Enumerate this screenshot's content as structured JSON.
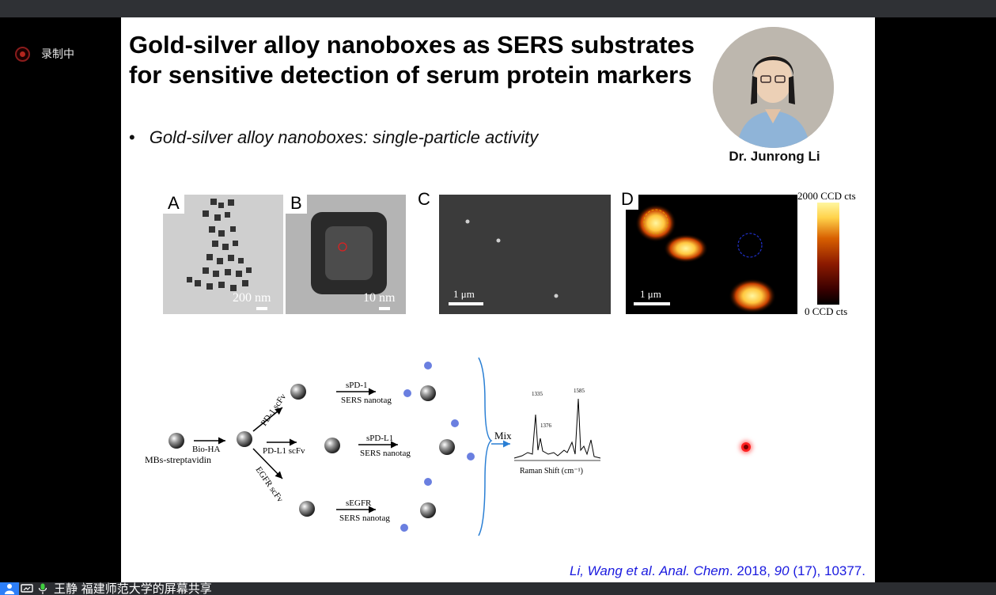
{
  "recording": {
    "label": "录制中"
  },
  "slide": {
    "title_line1": "Gold-silver alloy nanoboxes as SERS substrates",
    "title_line2": "for sensitive detection of serum protein markers",
    "bullet_symbol": "•",
    "bullet_text": "Gold-silver alloy nanoboxes: single-particle activity",
    "presenter": "Dr. Junrong Li",
    "panels": {
      "a": {
        "label": "A",
        "scale": "200 nm"
      },
      "b": {
        "label": "B",
        "scale": "10 nm"
      },
      "c": {
        "label": "C",
        "scale": "1 μm"
      },
      "d": {
        "label": "D",
        "scale": "1 μm"
      }
    },
    "colorbar": {
      "max": "2000 CCD cts",
      "min": "0 CCD cts"
    },
    "scheme": {
      "start": "MBs-streptavidin",
      "reagent": "Bio-HA",
      "branch1": "PD-1 scFv",
      "branch2": "PD-L1 scFv",
      "branch3": "EGFR scFv",
      "target1": "sPD-1",
      "target2": "sPD-L1",
      "target3": "sEGFR",
      "nanotag": "SERS nanotag",
      "mix": "Mix",
      "raman_xlabel": "Raman Shift (cm⁻¹)",
      "peak1": "1335",
      "peak2": "1376",
      "peak3": "1585"
    },
    "citation": {
      "authors": "Li, Wang et al",
      "journal": "Anal. Chem",
      "year": "2018",
      "volume": "90",
      "rest": "(17), 10377."
    }
  },
  "share_bar": {
    "text": "王静 福建师范大学的屏幕共享"
  }
}
